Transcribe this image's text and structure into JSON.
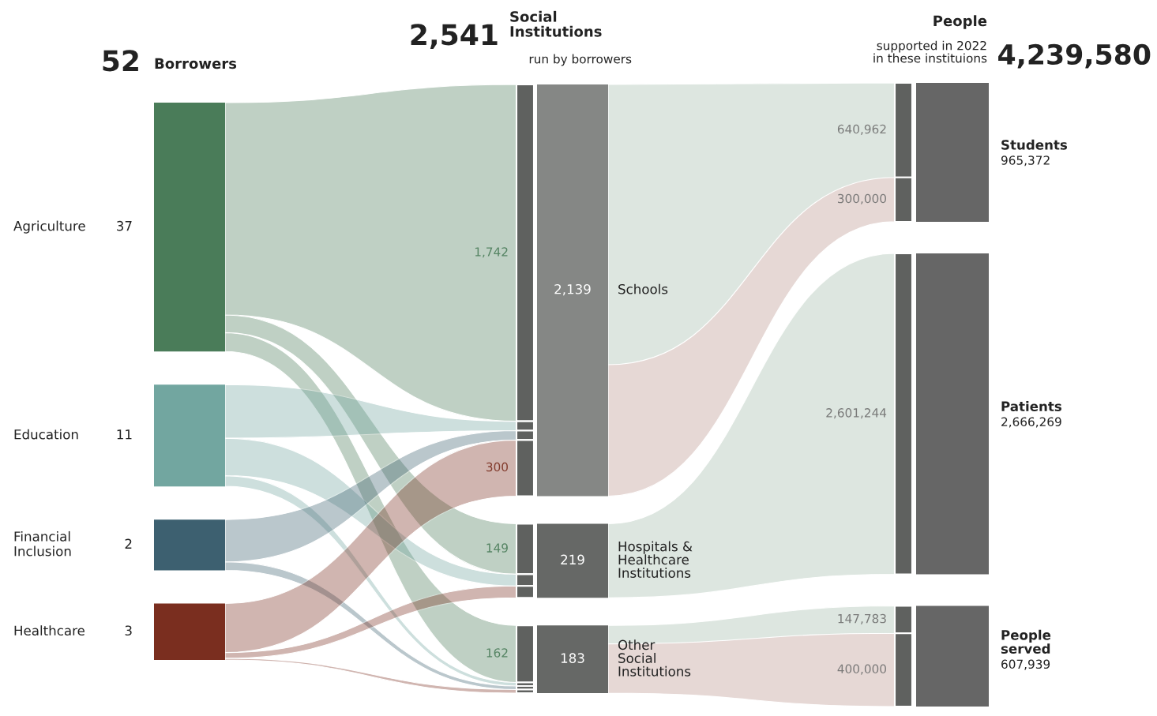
{
  "chart_data": {
    "type": "other",
    "categories": [
      "Agriculture",
      "Education",
      "Financial\nInclusion",
      "Healthcare",
      "Schools",
      "Hospitals &\nHealthcare\nInstitutions",
      "Other\nSocial\nInstitutions",
      "Students",
      "Patients",
      "People\nserved"
    ],
    "values": [
      37,
      11,
      2,
      3,
      2139,
      219,
      183,
      965372,
      2666269,
      607939
    ],
    "value_labels": [
      "37",
      "11",
      "2",
      "3",
      "2,139",
      "219",
      "183",
      "965,372",
      "2,666,269",
      "607,939"
    ],
    "colors": [
      "#4a7c59",
      "#72a6a0",
      "#3d6070",
      "#7a2e1f",
      "#858785",
      "#666866",
      "#666866",
      "#666666",
      "#666666",
      "#666666"
    ],
    "annotations": [
      "52",
      "Borrowers",
      "2,541",
      "Social\nInstitutions",
      "run by borrowers",
      "People",
      "supported in 2022\nin these instituions",
      "4,239,580",
      "1,742",
      "300",
      "149",
      "162",
      "640,962",
      "300,000",
      "2,601,244",
      "147,783",
      "400,000"
    ]
  }
}
